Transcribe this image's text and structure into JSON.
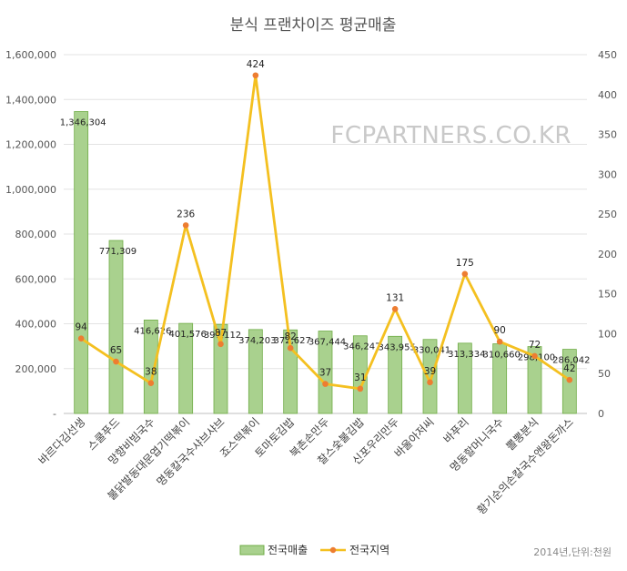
{
  "chart_data": {
    "type": "bar+line",
    "title": "분식 프랜차이즈 평균매출",
    "watermark": "FCPARTNERS.CO.KR",
    "note": "2014년,단위:천원",
    "categories": [
      "바르다김선생",
      "스쿨푸드",
      "망향비빔국수",
      "불닭발동대문엽기떡볶이",
      "명동칼국수샤브샤브",
      "죠스떡볶이",
      "토마토김밥",
      "북촌손만두",
      "찰스숯불김밥",
      "신포우리만두",
      "바울아저씨",
      "바푸리",
      "명동할머니국수",
      "뽈뽕분식",
      "황기순의손칼국수앤왕돈까스"
    ],
    "series": [
      {
        "name": "전국매출",
        "type": "bar",
        "axis": "left",
        "color": "#a9d18e",
        "stroke": "#70ad47",
        "values": [
          1346304,
          771309,
          416626,
          401576,
          397112,
          374203,
          372627,
          367444,
          346247,
          343955,
          330041,
          313334,
          310660,
          298100,
          286042
        ],
        "labels": [
          "1,346,304",
          "771,309",
          "416,626",
          "401,576",
          "397,112",
          "374,203",
          "372,627",
          "367,444",
          "346,247",
          "343,955",
          "330,041",
          "313,334",
          "310,660",
          "298,100",
          "286,042"
        ]
      },
      {
        "name": "전국지역",
        "type": "line",
        "axis": "right",
        "color": "#f4c020",
        "marker": "#ed7d31",
        "values": [
          94,
          65,
          38,
          236,
          87,
          424,
          82,
          37,
          31,
          131,
          39,
          175,
          90,
          72,
          42
        ],
        "labels": [
          "94",
          "65",
          "38",
          "236",
          "87",
          "424",
          "82",
          "37",
          "31",
          "131",
          "39",
          "175",
          "90",
          "72",
          "42"
        ]
      }
    ],
    "left_axis": {
      "min": 0,
      "max": 1600000,
      "step": 200000,
      "ticks": [
        "-",
        "200,000",
        "400,000",
        "600,000",
        "800,000",
        "1,000,000",
        "1,200,000",
        "1,400,000",
        "1,600,000"
      ]
    },
    "right_axis": {
      "min": 0,
      "max": 450,
      "step": 50,
      "ticks": [
        "0",
        "50",
        "100",
        "150",
        "200",
        "250",
        "300",
        "350",
        "400",
        "450"
      ]
    },
    "legend": {
      "position": "bottom",
      "items": [
        "전국매출",
        "전국지역"
      ]
    }
  }
}
